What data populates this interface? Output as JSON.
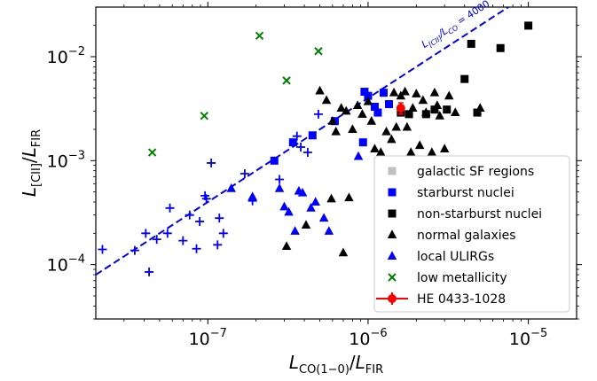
{
  "chart_data": {
    "type": "scatter",
    "xlabel": "L_CO(1−0)/L_FIR",
    "ylabel": "L_[CII]/L_FIR",
    "xscale": "log",
    "yscale": "log",
    "xlim": [
      2e-08,
      2e-05
    ],
    "ylim": [
      3e-05,
      0.03
    ],
    "x_ticks": [
      {
        "value": 1e-07,
        "base": "10",
        "exp": "−7"
      },
      {
        "value": 1e-06,
        "base": "10",
        "exp": "−6"
      },
      {
        "value": 1e-05,
        "base": "10",
        "exp": "−5"
      }
    ],
    "y_ticks": [
      {
        "value": 0.0001,
        "base": "10",
        "exp": "−4"
      },
      {
        "value": 0.001,
        "base": "10",
        "exp": "−3"
      },
      {
        "value": 0.01,
        "base": "10",
        "exp": "−2"
      }
    ],
    "grid": false,
    "legend_position": "lower-right",
    "reference_line": {
      "ratio": 4000,
      "label_prefix": "L",
      "label_num_sub": "[CII]",
      "label_slash": "/L",
      "label_den_sub": "CO",
      "label_suffix": " = 4000",
      "color": "#0000ee"
    },
    "series": [
      {
        "name": "galactic SF regions",
        "marker": "square",
        "color": "#c0c0c0",
        "points": []
      },
      {
        "name": "starburst nuclei",
        "marker": "square",
        "color": "#0000ff",
        "points": [
          [
            2.6e-07,
            0.001
          ],
          [
            3.4e-07,
            0.0015
          ],
          [
            4.5e-07,
            0.00175
          ],
          [
            6.2e-07,
            0.0024
          ],
          [
            9.3e-07,
            0.0015
          ],
          [
            9.5e-07,
            0.0046
          ],
          [
            1e-06,
            0.0042
          ],
          [
            1.1e-06,
            0.0033
          ],
          [
            1.15e-06,
            0.0029
          ],
          [
            1.25e-06,
            0.0045
          ],
          [
            1.35e-06,
            0.0035
          ]
        ]
      },
      {
        "name": "non-starburst nuclei",
        "marker": "square",
        "color": "#000000",
        "points": [
          [
            1.6e-06,
            0.0029
          ],
          [
            1.8e-06,
            0.0028
          ],
          [
            2.3e-06,
            0.0028
          ],
          [
            2.6e-06,
            0.0031
          ],
          [
            3.1e-06,
            0.0031
          ],
          [
            4e-06,
            0.0061
          ],
          [
            4.4e-06,
            0.0133
          ],
          [
            4.8e-06,
            0.0029
          ],
          [
            6.7e-06,
            0.0121
          ],
          [
            1e-05,
            0.0199
          ]
        ]
      },
      {
        "name": "normal galaxies",
        "marker": "triangle",
        "color": "#000000",
        "points": [
          [
            5e-07,
            0.0047
          ],
          [
            5.5e-07,
            0.0038
          ],
          [
            6e-07,
            0.0024
          ],
          [
            6.3e-07,
            0.0019
          ],
          [
            6.8e-07,
            0.0032
          ],
          [
            7.3e-07,
            0.003
          ],
          [
            8e-07,
            0.002
          ],
          [
            8.6e-07,
            0.0034
          ],
          [
            9.2e-07,
            0.0028
          ],
          [
            1e-06,
            0.0037
          ],
          [
            1.05e-06,
            0.0024
          ],
          [
            1.1e-06,
            0.0013
          ],
          [
            1.2e-06,
            0.0012
          ],
          [
            1.3e-06,
            0.0019
          ],
          [
            1.4e-06,
            0.0016
          ],
          [
            1.45e-06,
            0.0045
          ],
          [
            1.5e-06,
            0.0021
          ],
          [
            1.6e-06,
            0.0042
          ],
          [
            1.7e-06,
            0.0046
          ],
          [
            1.75e-06,
            0.0021
          ],
          [
            1.85e-06,
            0.0012
          ],
          [
            1.9e-06,
            0.0032
          ],
          [
            2e-06,
            0.0044
          ],
          [
            2.1e-06,
            0.0014
          ],
          [
            2.2e-06,
            0.0038
          ],
          [
            2.3e-06,
            0.0029
          ],
          [
            2.5e-06,
            0.0012
          ],
          [
            2.6e-06,
            0.0045
          ],
          [
            2.7e-06,
            0.0034
          ],
          [
            2.8e-06,
            0.0027
          ],
          [
            3e-06,
            0.0013
          ],
          [
            3.2e-06,
            0.0042
          ],
          [
            3.5e-06,
            0.0029
          ],
          [
            5e-06,
            0.0032
          ],
          [
            3.1e-07,
            0.00015
          ],
          [
            4.1e-07,
            0.00024
          ],
          [
            5.9e-07,
            0.00043
          ],
          [
            7e-07,
            0.00013
          ],
          [
            7.6e-07,
            0.00044
          ]
        ]
      },
      {
        "name": "local ULIRGs",
        "marker": "triangle",
        "color": "#0000ff",
        "points": [
          [
            1.4e-07,
            0.00054
          ],
          [
            1.9e-07,
            0.00045
          ],
          [
            2.8e-07,
            0.00054
          ],
          [
            3e-07,
            0.00036
          ],
          [
            3.2e-07,
            0.00032
          ],
          [
            3.5e-07,
            0.00021
          ],
          [
            3.7e-07,
            0.00051
          ],
          [
            3.9e-07,
            0.00049
          ],
          [
            4.4e-07,
            0.00035
          ],
          [
            4.7e-07,
            0.0004
          ],
          [
            5.3e-07,
            0.00028
          ],
          [
            5.7e-07,
            0.00021
          ],
          [
            8.7e-07,
            0.0011
          ]
        ]
      },
      {
        "name": "",
        "marker": "plus",
        "color": "#0000ff",
        "points": [
          [
            2.2e-08,
            0.00014
          ],
          [
            3.5e-08,
            0.000137
          ],
          [
            4.1e-08,
            0.0002
          ],
          [
            4.3e-08,
            8.5e-05
          ],
          [
            4.8e-08,
            0.000175
          ],
          [
            5.6e-08,
            0.0002
          ],
          [
            5.8e-08,
            0.00035
          ],
          [
            7e-08,
            0.00017
          ],
          [
            7.7e-08,
            0.0003
          ],
          [
            8.5e-08,
            0.000142
          ],
          [
            8.9e-08,
            0.00026
          ],
          [
            9.6e-08,
            0.00046
          ],
          [
            9.8e-08,
            0.00043
          ],
          [
            1.05e-07,
            0.00095
          ],
          [
            1.15e-07,
            0.000155
          ],
          [
            1.18e-07,
            0.00028
          ],
          [
            1.25e-07,
            0.0002
          ],
          [
            1.7e-07,
            0.00075
          ],
          [
            1.9e-07,
            0.00041
          ],
          [
            2.8e-07,
            0.00066
          ],
          [
            3.6e-07,
            0.00172
          ],
          [
            3.8e-07,
            0.00135
          ],
          [
            4.2e-07,
            0.0012
          ],
          [
            4.9e-07,
            0.0028
          ]
        ]
      },
      {
        "name": "low metallicity",
        "marker": "x",
        "color": "#008000",
        "points": [
          [
            4.5e-08,
            0.0012
          ],
          [
            9.5e-08,
            0.0027
          ],
          [
            2.1e-07,
            0.0159
          ],
          [
            3.1e-07,
            0.0059
          ],
          [
            4.9e-07,
            0.0113
          ]
        ]
      },
      {
        "name": "HE 0433-1028",
        "marker": "errorbar-circle",
        "color": "#ff0000",
        "points": [
          [
            1.6e-06,
            0.0032
          ]
        ],
        "y_err": [
          [
            0.0028,
            0.0036
          ]
        ]
      }
    ],
    "legend_entries": [
      {
        "label": "galactic SF regions",
        "marker": "square",
        "color": "#c0c0c0"
      },
      {
        "label": "starburst nuclei",
        "marker": "square",
        "color": "#0000ff"
      },
      {
        "label": "non-starburst nuclei",
        "marker": "square",
        "color": "#000000"
      },
      {
        "label": "normal galaxies",
        "marker": "triangle",
        "color": "#000000"
      },
      {
        "label": "local ULIRGs",
        "marker": "triangle",
        "color": "#0000ff"
      },
      {
        "label": "low metallicity",
        "marker": "x",
        "color": "#008000"
      },
      {
        "label": "HE 0433-1028",
        "marker": "errorbar-circle",
        "color": "#ff0000"
      }
    ]
  }
}
